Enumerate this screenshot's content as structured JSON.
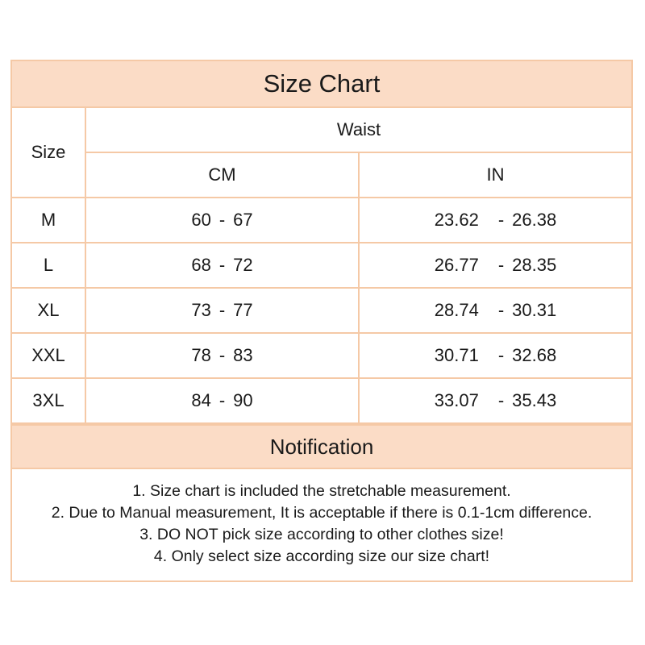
{
  "title": "Size Chart",
  "headers": {
    "size": "Size",
    "waist": "Waist",
    "cm": "CM",
    "in": "IN"
  },
  "rows": [
    {
      "size": "M",
      "cm_min": "60",
      "cm_max": "67",
      "in_min": "23.62",
      "in_max": "26.38"
    },
    {
      "size": "L",
      "cm_min": "68",
      "cm_max": "72",
      "in_min": "26.77",
      "in_max": "28.35"
    },
    {
      "size": "XL",
      "cm_min": "73",
      "cm_max": "77",
      "in_min": "28.74",
      "in_max": "30.31"
    },
    {
      "size": "XXL",
      "cm_min": "78",
      "cm_max": "83",
      "in_min": "30.71",
      "in_max": "32.68"
    },
    {
      "size": "3XL",
      "cm_min": "84",
      "cm_max": "90",
      "in_min": "33.07",
      "in_max": "35.43"
    }
  ],
  "range_separator": "-",
  "notification": {
    "title": "Notification",
    "notes": [
      "1. Size chart is included the stretchable measurement.",
      "2. Due to Manual measurement, It is acceptable if there is 0.1-1cm difference.",
      "3. DO NOT pick size according to other clothes size!",
      "4. Only select size according size our size chart!"
    ]
  },
  "colors": {
    "border": "#f5c9a6",
    "header_fill": "#fbdcc6",
    "text": "#1a1a1a"
  }
}
